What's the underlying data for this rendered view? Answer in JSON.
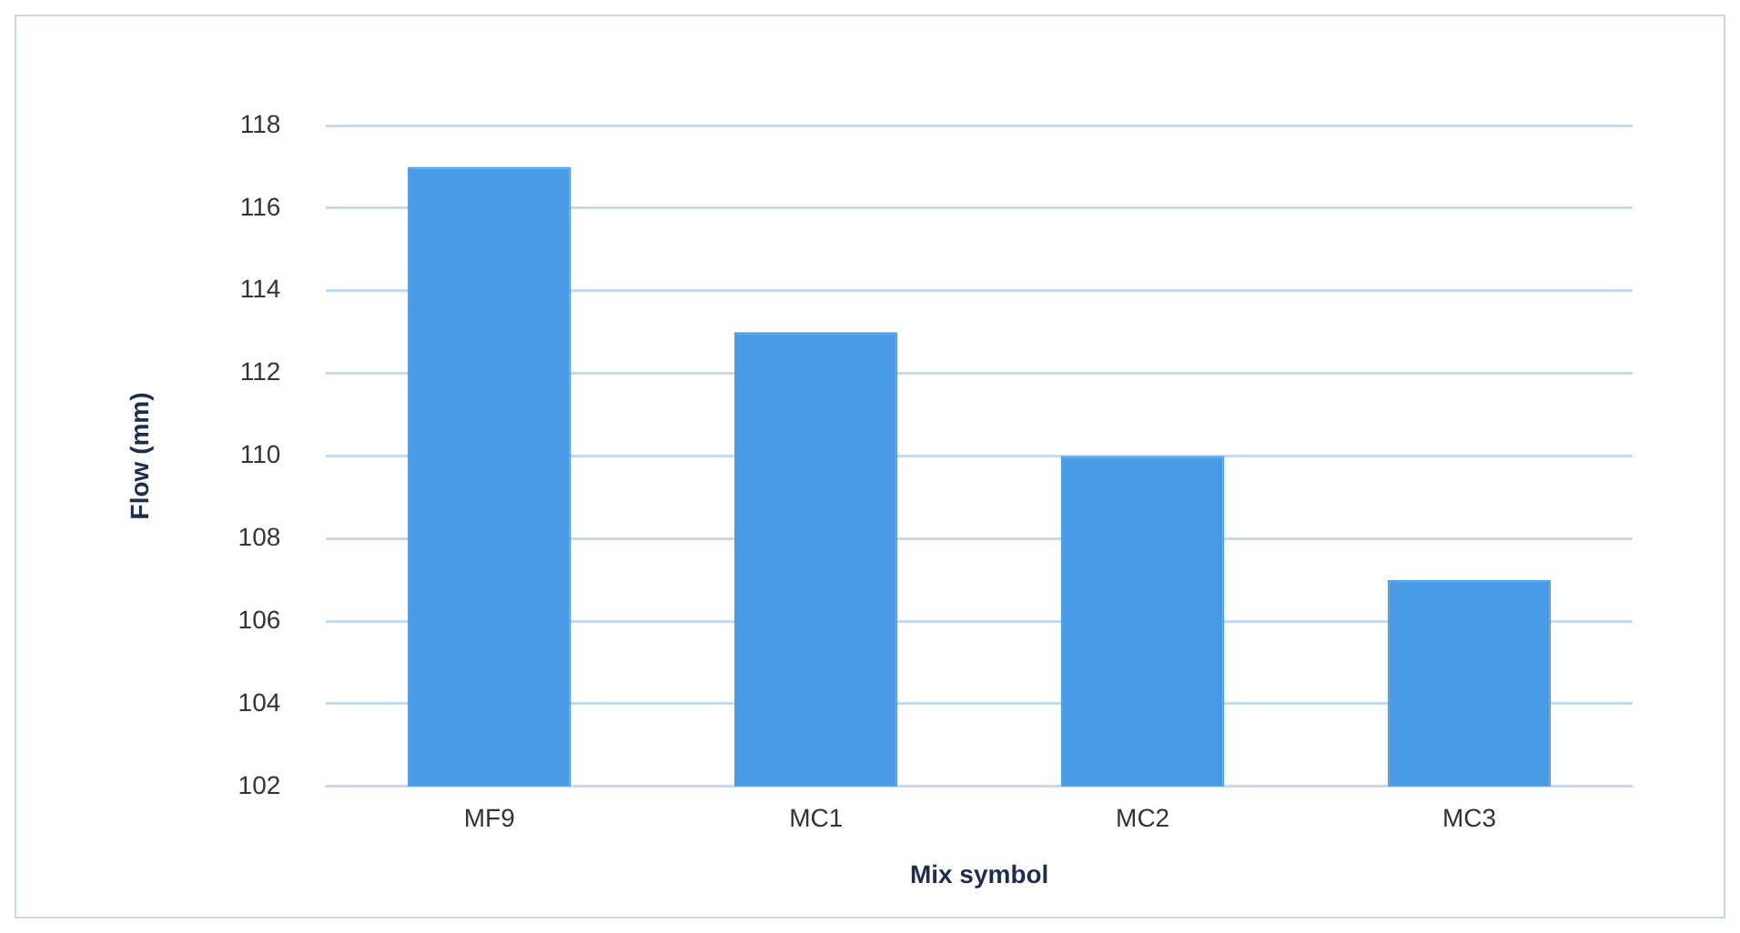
{
  "chart_data": {
    "type": "bar",
    "xlabel": "Mix symbol",
    "ylabel": "Flow (mm)",
    "categories": [
      "MF9",
      "MC1",
      "MC2",
      "MC3"
    ],
    "values": [
      117,
      113,
      110,
      107
    ],
    "color": "#4a9be6",
    "ylim": [
      102,
      118
    ],
    "yticks": [
      102,
      104,
      106,
      108,
      110,
      112,
      114,
      116,
      118
    ],
    "grid": "y"
  }
}
